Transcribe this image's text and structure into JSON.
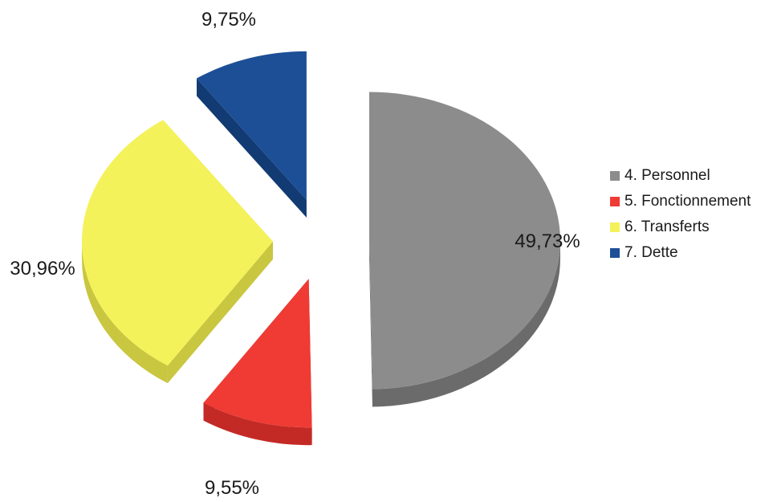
{
  "chart_data": {
    "type": "pie",
    "categories": [
      "4. Personnel",
      "5. Fonctionnement",
      "6. Transferts",
      "7. Dette"
    ],
    "values": [
      49.73,
      9.55,
      30.96,
      9.75
    ],
    "labels": [
      "49,73%",
      "9,55%",
      "30,96%",
      "9,75%"
    ],
    "colors": [
      "#8c8c8c",
      "#ef3b34",
      "#f4f25a",
      "#1d4f96"
    ],
    "side_colors": [
      "#6b6b6b",
      "#c42a25",
      "#c9c640",
      "#123a73"
    ],
    "legend_position": "right",
    "exploded": true,
    "style": "3d"
  }
}
